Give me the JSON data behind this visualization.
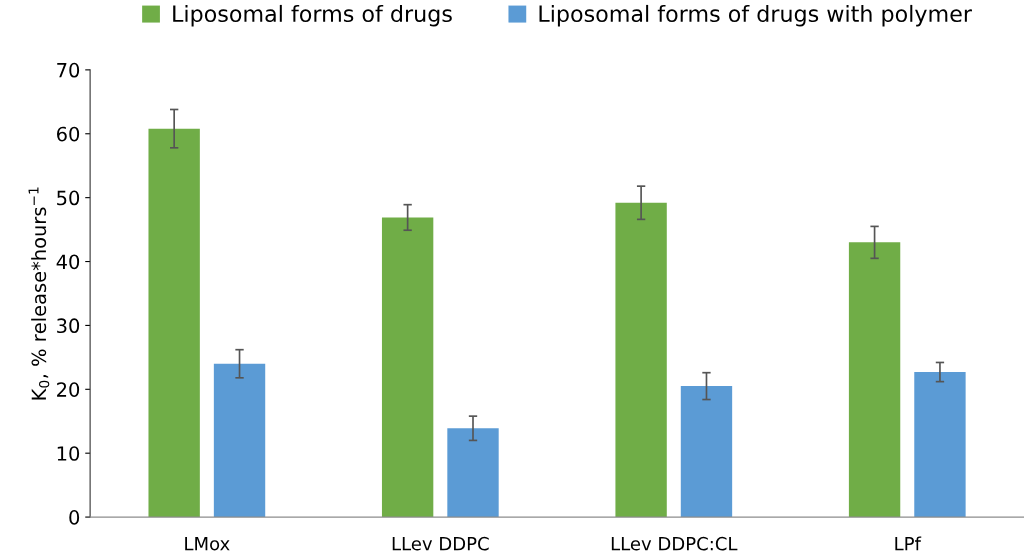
{
  "chart_data": {
    "type": "bar",
    "ylabel": "K$_{0}$, % release*hours$^{−1}$",
    "categories": [
      "LMox",
      "LLev DDPC",
      "LLev DDPC:CL",
      "LPf"
    ],
    "series": [
      {
        "name": "Liposomal forms of drugs",
        "color": "#70ad47",
        "values": [
          60.8,
          46.9,
          49.2,
          43.0
        ],
        "errors": [
          3.0,
          2.0,
          2.6,
          2.5
        ]
      },
      {
        "name": "Liposomal forms of drugs with polymer",
        "color": "#5b9bd5",
        "values": [
          24.0,
          13.9,
          20.5,
          22.7
        ],
        "errors": [
          2.2,
          1.9,
          2.1,
          1.5
        ]
      }
    ],
    "ylim": [
      0,
      70
    ],
    "yticks": [
      0,
      10,
      20,
      30,
      40,
      50,
      60,
      70
    ],
    "grid": false,
    "legend": "top"
  }
}
